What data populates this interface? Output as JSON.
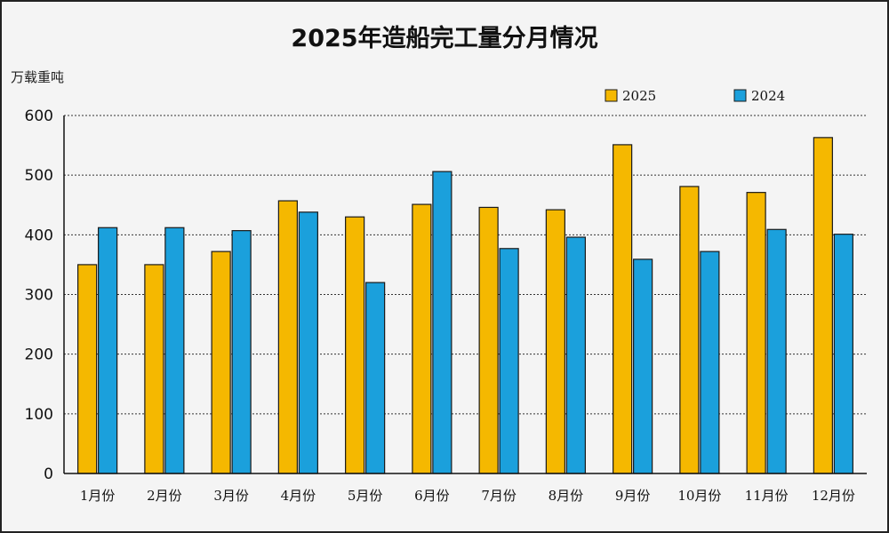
{
  "chart_data": {
    "type": "bar",
    "title": "2025年造船完工量分月情况",
    "ylabel": "万载重吨",
    "xlabel": "",
    "ylim": [
      0,
      600
    ],
    "yticks": [
      0,
      100,
      200,
      300,
      400,
      500,
      600
    ],
    "categories": [
      "1月份",
      "2月份",
      "3月份",
      "4月份",
      "5月份",
      "6月份",
      "7月份",
      "8月份",
      "9月份",
      "10月份",
      "11月份",
      "12月份"
    ],
    "series": [
      {
        "name": "2025",
        "color": "#F5B800",
        "values": [
          350,
          350,
          372,
          457,
          430,
          451,
          446,
          442,
          551,
          481,
          471,
          563
        ]
      },
      {
        "name": "2024",
        "color": "#1BA0DC",
        "values": [
          412,
          412,
          407,
          438,
          320,
          506,
          377,
          396,
          359,
          372,
          409,
          401
        ]
      }
    ],
    "legend_position": "top-right",
    "grid": true
  }
}
